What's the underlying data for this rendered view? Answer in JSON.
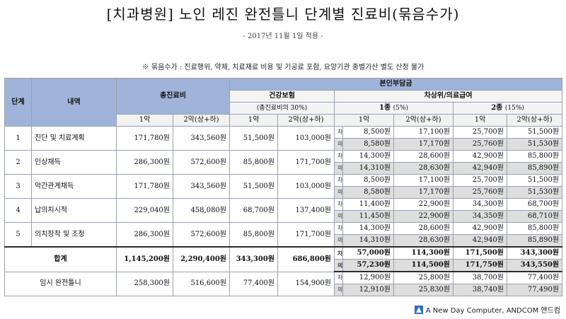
{
  "title": "[치과병원] 노인 레진 완전틀니 단계별 진료비(묶음수가)",
  "subtitle": "- 2017년 11월 1일 적용 -",
  "note": "※ 묶음수가 : 진료행위, 약제, 치료재료 비용 및 기공료 포함, 요양기관 종별가산 별도 산정 불가",
  "headers": {
    "stage": "단계",
    "detail": "내역",
    "total_fee": "총진료비",
    "patient_burden": "본인부담금",
    "health_insurance": "건강보험",
    "health_insurance_note": "(총진료비의 30%)",
    "upper_aid": "차상위/의료급여",
    "type1": "1종",
    "type1_rate": "(5%)",
    "type2": "2종",
    "type2_rate": "(15%)",
    "jaw1": "1악",
    "jaw2": "2악(상+하)"
  },
  "tags": {
    "cha": "차",
    "ui": "의"
  },
  "rows": [
    {
      "stage": "1",
      "item": "진단 및 치료계획",
      "t1": "171,780원",
      "t2": "343,560원",
      "h1": "51,500원",
      "h2": "103,000원",
      "cha": [
        "8,500원",
        "17,100원",
        "25,700원",
        "51,500원"
      ],
      "ui": [
        "8,580원",
        "17,170원",
        "25,760원",
        "51,530원"
      ]
    },
    {
      "stage": "2",
      "item": "인상채득",
      "t1": "286,300원",
      "t2": "572,600원",
      "h1": "85,800원",
      "h2": "171,700원",
      "cha": [
        "14,300원",
        "28,600원",
        "42,900원",
        "85,800원"
      ],
      "ui": [
        "14,310원",
        "28,630원",
        "42,940원",
        "85,890원"
      ]
    },
    {
      "stage": "3",
      "item": "악간관계채득",
      "t1": "171,780원",
      "t2": "343,560원",
      "h1": "51,500원",
      "h2": "103,000원",
      "cha": [
        "8,500원",
        "17,100원",
        "25,700원",
        "51,500원"
      ],
      "ui": [
        "8,580원",
        "17,170원",
        "25,760원",
        "51,530원"
      ]
    },
    {
      "stage": "4",
      "item": "납의치시적",
      "t1": "229,040원",
      "t2": "458,080원",
      "h1": "68,700원",
      "h2": "137,400원",
      "cha": [
        "11,400원",
        "22,900원",
        "34,300원",
        "68,700원"
      ],
      "ui": [
        "11,450원",
        "22,900원",
        "34,350원",
        "68,710원"
      ]
    },
    {
      "stage": "5",
      "item": "의치장착 및 조정",
      "t1": "286,300원",
      "t2": "572,600원",
      "h1": "85,800원",
      "h2": "171,700원",
      "cha": [
        "14,300원",
        "28,600원",
        "42,900원",
        "85,800원"
      ],
      "ui": [
        "14,310원",
        "28,630원",
        "42,940원",
        "85,890원"
      ]
    }
  ],
  "total": {
    "label": "합계",
    "t1": "1,145,200원",
    "t2": "2,290,400원",
    "h1": "343,300원",
    "h2": "686,800원",
    "cha": [
      "57,000원",
      "114,300원",
      "171,500원",
      "343,300원"
    ],
    "ui": [
      "57,230원",
      "114,500원",
      "171,750원",
      "343,550원"
    ]
  },
  "temp": {
    "label": "임시 완전틀니",
    "t1": "258,300원",
    "t2": "516,600원",
    "h1": "77,400원",
    "h2": "154,900원",
    "cha": [
      "12,900원",
      "25,800원",
      "38,700원",
      "77,400원"
    ],
    "ui": [
      "12,910원",
      "25,830원",
      "38,740원",
      "77,490원"
    ]
  },
  "footer": "A New Day Computer, ANDCOM 앤드컴",
  "colors": {
    "header_blue": "#9fb4d8",
    "ui_row_gray": "#dedede"
  }
}
